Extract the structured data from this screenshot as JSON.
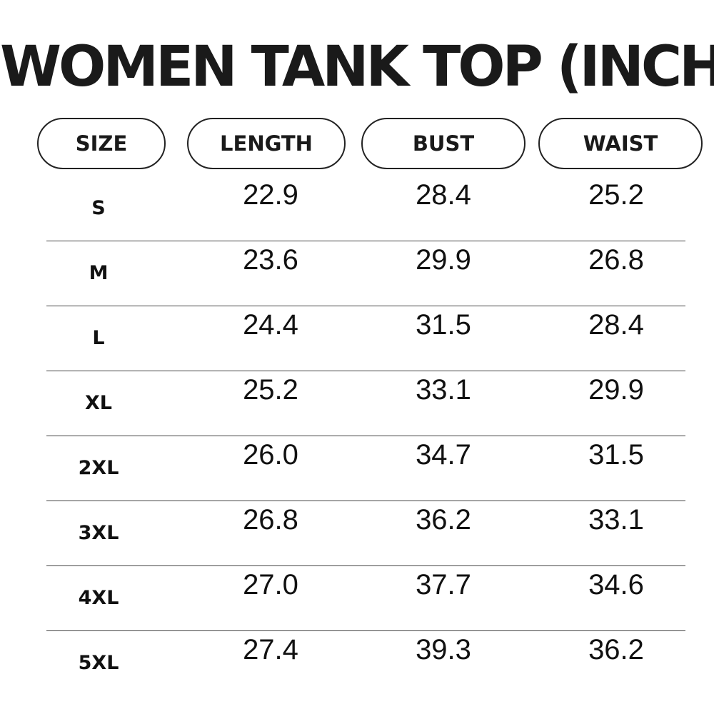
{
  "title": "WOMEN TANK TOP (INCH)",
  "headers": {
    "size": "SIZE",
    "length": "LENGTH",
    "bust": "BUST",
    "waist": "WAIST"
  },
  "rows": [
    {
      "size": "S",
      "length": "22.9",
      "bust": "28.4",
      "waist": "25.2"
    },
    {
      "size": "M",
      "length": "23.6",
      "bust": "29.9",
      "waist": "26.8"
    },
    {
      "size": "L",
      "length": "24.4",
      "bust": "31.5",
      "waist": "28.4"
    },
    {
      "size": "XL",
      "length": "25.2",
      "bust": "33.1",
      "waist": "29.9"
    },
    {
      "size": "2XL",
      "length": "26.0",
      "bust": "34.7",
      "waist": "31.5"
    },
    {
      "size": "3XL",
      "length": "26.8",
      "bust": "36.2",
      "waist": "33.1"
    },
    {
      "size": "4XL",
      "length": "27.0",
      "bust": "37.7",
      "waist": "34.6"
    },
    {
      "size": "5XL",
      "length": "27.4",
      "bust": "39.3",
      "waist": "36.2"
    }
  ]
}
